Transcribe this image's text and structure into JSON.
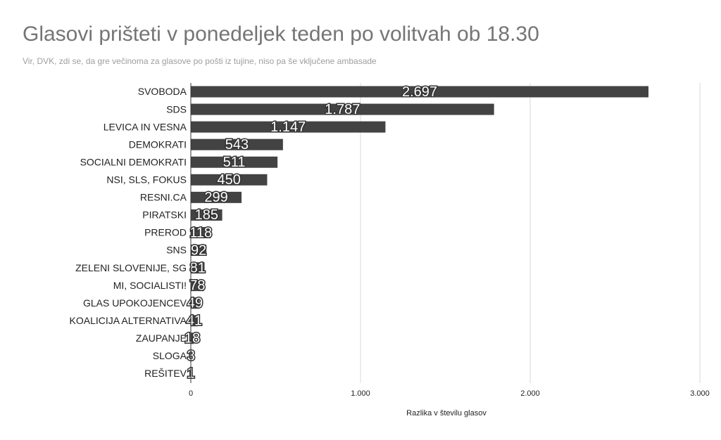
{
  "chart_data": {
    "type": "barh",
    "title": "Glasovi prišteti v ponedeljek teden po volitvah ob 18.30",
    "subtitle": "Vir, DVK, zdi se, da gre večinoma za glasove po pošti iz tujine, niso pa še vključene ambasade",
    "x_label": "Razlika v številu glasov",
    "categories": [
      "SVOBODA",
      "SDS",
      "LEVICA IN VESNA",
      "DEMOKRATI",
      "SOCIALNI DEMOKRATI",
      "NSI, SLS, FOKUS",
      "RESNI.CA",
      "PIRATSKI",
      "PREROD",
      "SNS",
      "ZELENI SLOVENIJE, SG",
      "MI, SOCIALISTI!",
      "GLAS UPOKOJENCEV",
      "KOALICIJA ALTERNATIVA",
      "ZAUPANJE",
      "SLOGA",
      "REŠITEV"
    ],
    "values": [
      2697,
      1787,
      1147,
      543,
      511,
      450,
      299,
      185,
      118,
      92,
      81,
      78,
      49,
      41,
      18,
      3,
      1
    ],
    "value_labels": [
      "2.697",
      "1.787",
      "1.147",
      "543",
      "511",
      "450",
      "299",
      "185",
      "118",
      "92",
      "81",
      "78",
      "49",
      "41",
      "18",
      "3",
      "1"
    ],
    "color": "#434343",
    "xlim": [
      0,
      3000
    ],
    "xticks": [
      0,
      {
        "value": 1000,
        "label": "1.000"
      },
      {
        "value": 2000,
        "label": "2.000"
      },
      {
        "value": 3000,
        "label": "3.000"
      }
    ],
    "grid": true
  }
}
